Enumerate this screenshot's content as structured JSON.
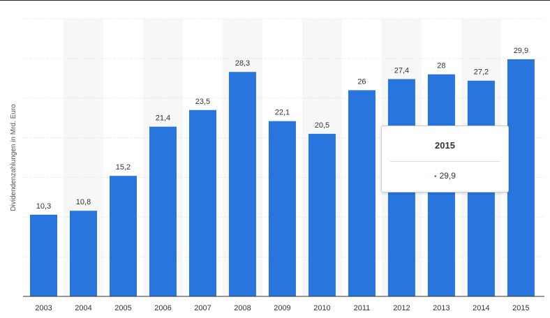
{
  "chart_data": {
    "type": "bar",
    "categories": [
      "2003",
      "2004",
      "2005",
      "2006",
      "2007",
      "2008",
      "2009",
      "2010",
      "2011",
      "2012",
      "2013",
      "2014",
      "2015"
    ],
    "values": [
      10.3,
      10.8,
      15.2,
      21.4,
      23.5,
      28.3,
      22.1,
      20.5,
      26,
      27.4,
      28,
      27.2,
      29.9
    ],
    "data_labels": [
      "10,3",
      "10,8",
      "15,2",
      "21,4",
      "23,5",
      "28,3",
      "22,1",
      "20,5",
      "26",
      "27,4",
      "28",
      "27,2",
      "29,9"
    ],
    "title": "",
    "xlabel": "",
    "ylabel": "Dividendenzahlungen in Mrd. Euro",
    "ylim": [
      0,
      35
    ],
    "grid": true,
    "bar_color": "#2876dd"
  },
  "tooltip": {
    "title": "2015",
    "value": "29,9",
    "marker": "•"
  }
}
